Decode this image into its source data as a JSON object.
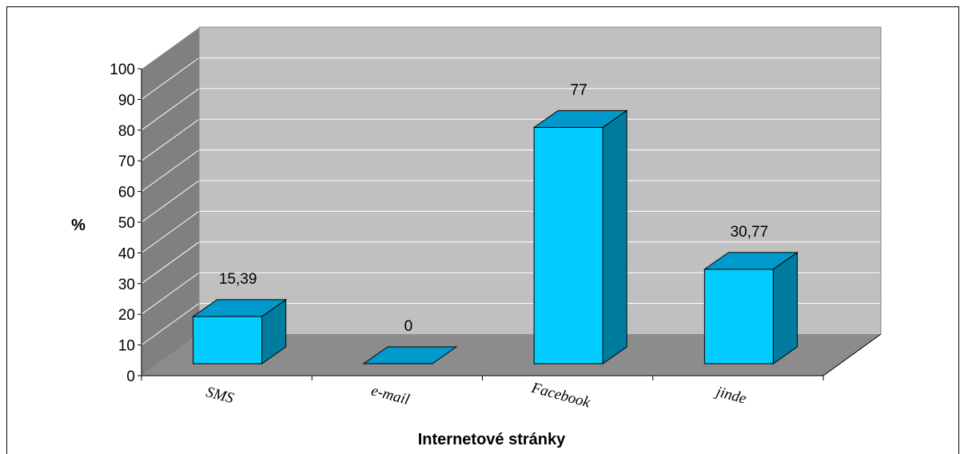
{
  "chart_data": {
    "type": "bar",
    "categories": [
      "SMS",
      "e-mail",
      "Facebook",
      "jinde"
    ],
    "values": [
      15.39,
      0,
      77,
      30.77
    ],
    "data_labels": [
      "15,39",
      "0",
      "77",
      "30,77"
    ],
    "xlabel": "Internetové stránky",
    "ylabel": "%",
    "ylim": [
      0,
      100
    ],
    "yticks": [
      0,
      10,
      20,
      30,
      40,
      50,
      60,
      70,
      80,
      90,
      100
    ],
    "grid": true,
    "legend": "none",
    "style": "3d-column"
  },
  "colors": {
    "bar_front": "#00CCFF",
    "bar_top": "#0099CC",
    "bar_side": "#007C9E",
    "back_wall": "#C0C0C0",
    "side_wall": "#808080",
    "floor": "#8C8C8C"
  }
}
